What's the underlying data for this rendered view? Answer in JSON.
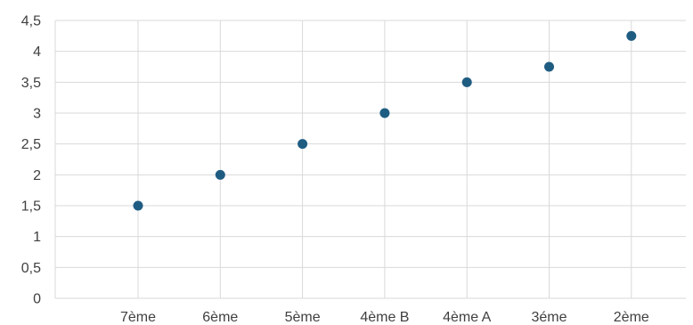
{
  "chart_data": {
    "type": "scatter",
    "title": "",
    "xlabel": "",
    "ylabel": "",
    "categories": [
      "7ème",
      "6ème",
      "5ème",
      "4ème B",
      "4ème A",
      "3éme",
      "2ème"
    ],
    "values": [
      1.5,
      2,
      2.5,
      3,
      3.5,
      3.75,
      4.25
    ],
    "ylim": [
      0,
      4.5
    ],
    "yticks": [
      "0",
      "0,5",
      "1",
      "1,5",
      "2",
      "2,5",
      "3",
      "3,5",
      "4",
      "4,5"
    ],
    "grid": true,
    "legend": "none",
    "marker_color": "#1f5c82",
    "grid_color": "#d9d9d9"
  }
}
